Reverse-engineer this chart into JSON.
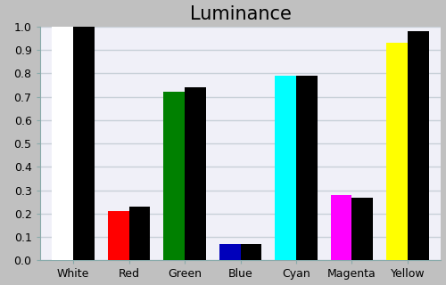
{
  "title": "Luminance",
  "categories": [
    "White",
    "Red",
    "Green",
    "Blue",
    "Cyan",
    "Magenta",
    "Yellow"
  ],
  "measured_values": [
    1.0,
    0.21,
    0.72,
    0.07,
    0.79,
    0.28,
    0.93
  ],
  "reference_values": [
    1.0,
    0.23,
    0.74,
    0.07,
    0.79,
    0.27,
    0.98
  ],
  "measured_colors": [
    "#ffffff",
    "#ff0000",
    "#008000",
    "#0000bb",
    "#00ffff",
    "#ff00ff",
    "#ffff00"
  ],
  "reference_color": "#000000",
  "figure_background": "#c0c0c0",
  "plot_background": "#f0f0f8",
  "ylim": [
    0.0,
    1.0
  ],
  "yticks": [
    0.0,
    0.1,
    0.2,
    0.3,
    0.4,
    0.5,
    0.6,
    0.7,
    0.8,
    0.9,
    1.0
  ],
  "bar_width": 0.38,
  "title_fontsize": 15,
  "tick_fontsize": 9,
  "grid_color": "#c8d0d8",
  "grid_linewidth": 1.0
}
